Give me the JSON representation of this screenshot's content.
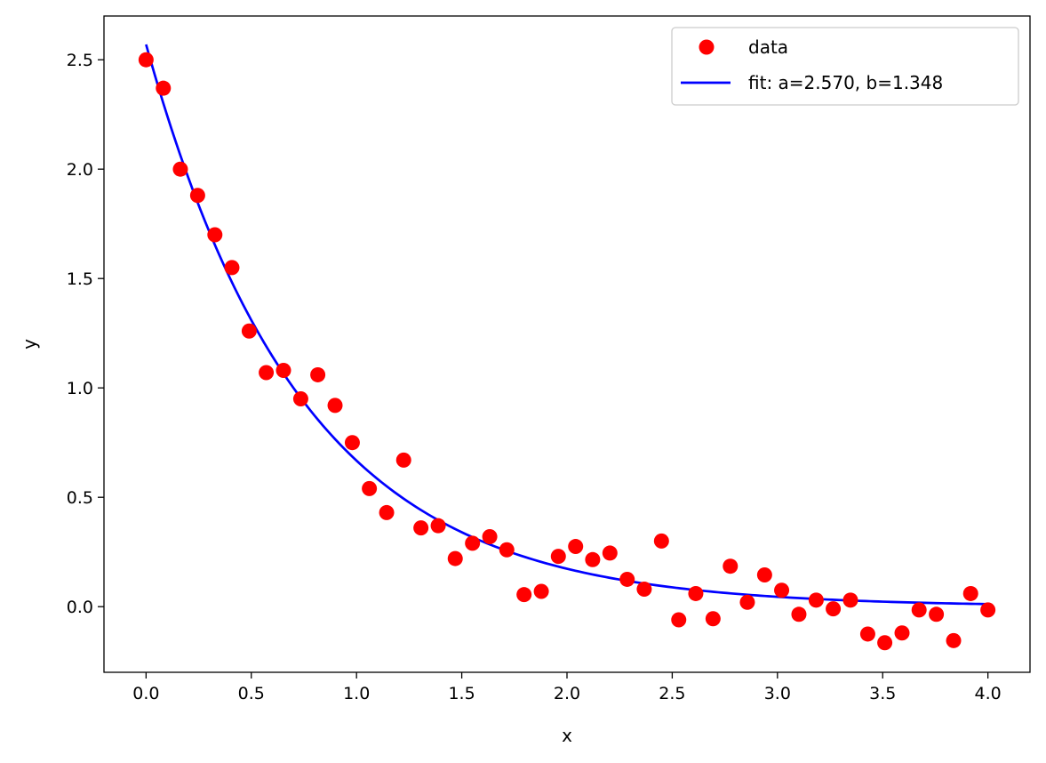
{
  "chart_data": {
    "type": "scatter",
    "xlabel": "x",
    "ylabel": "y",
    "xlim": [
      -0.2,
      4.2
    ],
    "ylim": [
      -0.3,
      2.7
    ],
    "xticks": [
      0.0,
      0.5,
      1.0,
      1.5,
      2.0,
      2.5,
      3.0,
      3.5,
      4.0
    ],
    "xtick_labels": [
      "0.0",
      "0.5",
      "1.0",
      "1.5",
      "2.0",
      "2.5",
      "3.0",
      "3.5",
      "4.0"
    ],
    "yticks": [
      0.0,
      0.5,
      1.0,
      1.5,
      2.0,
      2.5
    ],
    "ytick_labels": [
      "0.0",
      "0.5",
      "1.0",
      "1.5",
      "2.0",
      "2.5"
    ],
    "grid": false,
    "legend_position": "top-right",
    "series": [
      {
        "name": "data",
        "kind": "scatter",
        "color": "#ff0000",
        "x": [
          0.0,
          0.082,
          0.163,
          0.245,
          0.327,
          0.408,
          0.49,
          0.571,
          0.653,
          0.735,
          0.816,
          0.898,
          0.98,
          1.061,
          1.143,
          1.224,
          1.306,
          1.388,
          1.469,
          1.551,
          1.633,
          1.714,
          1.796,
          1.878,
          1.959,
          2.041,
          2.122,
          2.204,
          2.286,
          2.367,
          2.449,
          2.531,
          2.612,
          2.694,
          2.776,
          2.857,
          2.939,
          3.02,
          3.102,
          3.184,
          3.265,
          3.347,
          3.429,
          3.51,
          3.592,
          3.673,
          3.755,
          3.837,
          3.918,
          4.0
        ],
        "y": [
          2.5,
          2.37,
          2.0,
          1.88,
          1.7,
          1.55,
          1.26,
          1.07,
          1.08,
          0.95,
          1.06,
          0.92,
          0.75,
          0.54,
          0.43,
          0.67,
          0.36,
          0.37,
          0.22,
          0.29,
          0.32,
          0.26,
          0.055,
          0.07,
          0.23,
          0.275,
          0.215,
          0.245,
          0.125,
          0.08,
          0.3,
          -0.06,
          0.06,
          -0.055,
          0.185,
          0.02,
          0.145,
          0.075,
          -0.035,
          0.03,
          -0.01,
          0.03,
          -0.125,
          -0.165,
          -0.12,
          -0.015,
          -0.035,
          -0.155,
          0.06,
          -0.015
        ]
      },
      {
        "name": "fit: a=2.570, b=1.348",
        "kind": "line",
        "color": "#0000ff",
        "function": "a*exp(-b*x)",
        "a": 2.57,
        "b": 1.348,
        "x_range": [
          0.0,
          4.0
        ]
      }
    ]
  }
}
